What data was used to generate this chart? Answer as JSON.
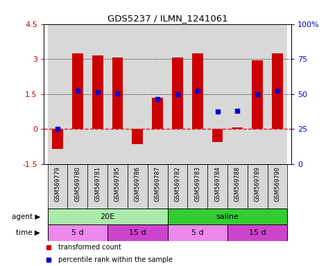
{
  "title": "GDS5237 / ILMN_1241061",
  "samples": [
    "GSM569779",
    "GSM569780",
    "GSM569781",
    "GSM569785",
    "GSM569786",
    "GSM569787",
    "GSM569782",
    "GSM569783",
    "GSM569784",
    "GSM569788",
    "GSM569789",
    "GSM569790"
  ],
  "red_values": [
    -0.85,
    3.25,
    3.15,
    3.05,
    -0.65,
    1.35,
    3.05,
    3.25,
    -0.55,
    0.07,
    2.95,
    3.25
  ],
  "blue_values": [
    0.0,
    1.65,
    1.58,
    1.52,
    0.0,
    1.28,
    1.5,
    1.65,
    0.73,
    0.78,
    1.5,
    1.65
  ],
  "blue_marker_show": [
    true,
    true,
    true,
    true,
    false,
    true,
    true,
    true,
    true,
    true,
    true,
    true
  ],
  "blue_near_bottom": [
    true,
    false,
    false,
    false,
    true,
    false,
    false,
    false,
    false,
    false,
    false,
    false
  ],
  "ylim_left": [
    -1.5,
    4.5
  ],
  "ylim_right": [
    0,
    100
  ],
  "yticks_left": [
    -1.5,
    0,
    1.5,
    3.0,
    4.5
  ],
  "ytick_labels_left": [
    "-1.5",
    "0",
    "1.5",
    "3",
    "4.5"
  ],
  "yticks_right": [
    0,
    25,
    50,
    75,
    100
  ],
  "ytick_labels_right": [
    "0",
    "25",
    "50",
    "75",
    "100%"
  ],
  "bar_color": "#cc0000",
  "dot_color": "#0000cc",
  "agent_groups": [
    {
      "label": "20E",
      "start": 0,
      "end": 6,
      "color": "#aaeaaa"
    },
    {
      "label": "saline",
      "start": 6,
      "end": 12,
      "color": "#33cc33"
    }
  ],
  "time_groups": [
    {
      "label": "5 d",
      "start": 0,
      "end": 3,
      "color": "#ee88ee"
    },
    {
      "label": "15 d",
      "start": 3,
      "end": 6,
      "color": "#cc44cc"
    },
    {
      "label": "5 d",
      "start": 6,
      "end": 9,
      "color": "#ee88ee"
    },
    {
      "label": "15 d",
      "start": 9,
      "end": 12,
      "color": "#cc44cc"
    }
  ],
  "legend_items": [
    {
      "color": "#cc0000",
      "label": "transformed count"
    },
    {
      "color": "#0000cc",
      "label": "percentile rank within the sample"
    }
  ],
  "bar_width": 0.55,
  "col_bg_color": "#d8d8d8",
  "plot_bg": "#ffffff"
}
